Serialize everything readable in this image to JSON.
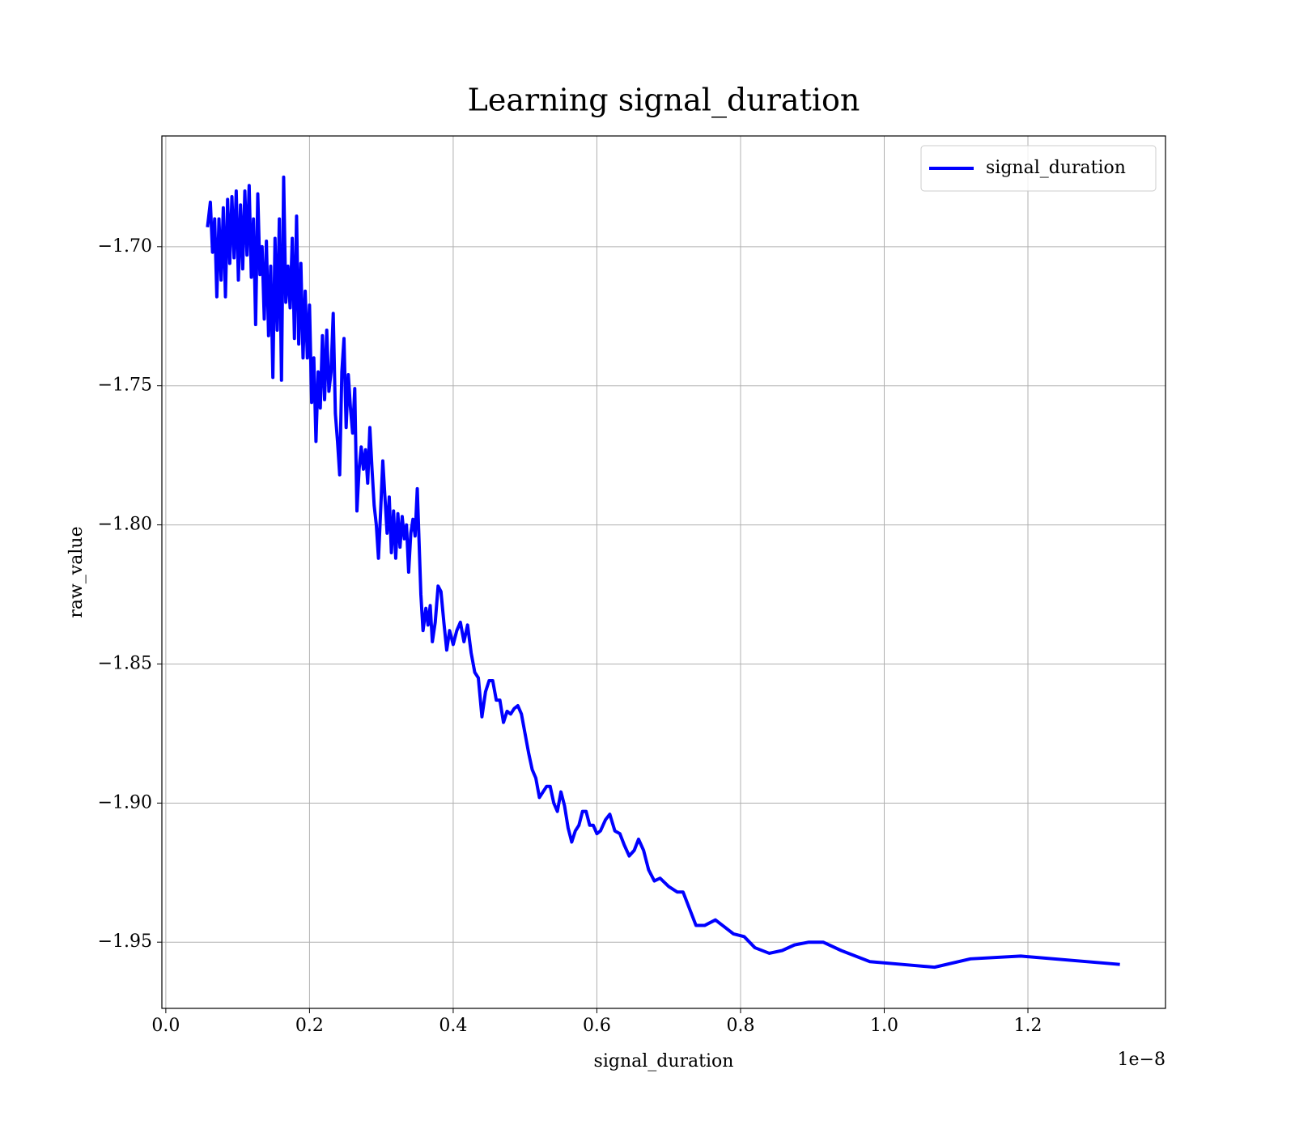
{
  "chart_data": {
    "type": "line",
    "title": "Learning signal_duration",
    "x_label": "signal_duration",
    "y_label": "raw_value",
    "x_offset_label": "1e−8",
    "x": [
      0.058,
      0.062,
      0.065,
      0.068,
      0.071,
      0.074,
      0.077,
      0.08,
      0.083,
      0.086,
      0.089,
      0.092,
      0.095,
      0.098,
      0.101,
      0.104,
      0.107,
      0.11,
      0.113,
      0.116,
      0.119,
      0.122,
      0.125,
      0.128,
      0.131,
      0.134,
      0.137,
      0.14,
      0.143,
      0.146,
      0.149,
      0.152,
      0.155,
      0.158,
      0.161,
      0.164,
      0.167,
      0.17,
      0.173,
      0.176,
      0.179,
      0.182,
      0.185,
      0.188,
      0.191,
      0.194,
      0.197,
      0.2,
      0.203,
      0.206,
      0.209,
      0.212,
      0.215,
      0.218,
      0.221,
      0.224,
      0.227,
      0.23,
      0.233,
      0.236,
      0.239,
      0.242,
      0.245,
      0.248,
      0.251,
      0.254,
      0.257,
      0.26,
      0.263,
      0.266,
      0.269,
      0.272,
      0.275,
      0.278,
      0.281,
      0.284,
      0.287,
      0.29,
      0.293,
      0.296,
      0.299,
      0.302,
      0.305,
      0.308,
      0.311,
      0.314,
      0.317,
      0.32,
      0.323,
      0.326,
      0.329,
      0.332,
      0.335,
      0.338,
      0.341,
      0.344,
      0.347,
      0.35,
      0.355,
      0.358,
      0.362,
      0.365,
      0.368,
      0.371,
      0.375,
      0.379,
      0.383,
      0.387,
      0.391,
      0.395,
      0.4,
      0.405,
      0.41,
      0.415,
      0.42,
      0.425,
      0.43,
      0.435,
      0.44,
      0.445,
      0.45,
      0.455,
      0.46,
      0.465,
      0.47,
      0.475,
      0.48,
      0.485,
      0.49,
      0.495,
      0.5,
      0.505,
      0.51,
      0.515,
      0.52,
      0.525,
      0.53,
      0.535,
      0.54,
      0.545,
      0.55,
      0.555,
      0.56,
      0.565,
      0.57,
      0.575,
      0.58,
      0.585,
      0.59,
      0.595,
      0.6,
      0.605,
      0.612,
      0.618,
      0.625,
      0.632,
      0.638,
      0.645,
      0.652,
      0.658,
      0.665,
      0.672,
      0.68,
      0.688,
      0.7,
      0.712,
      0.72,
      0.738,
      0.75,
      0.765,
      0.79,
      0.805,
      0.82,
      0.84,
      0.858,
      0.875,
      0.895,
      0.915,
      0.94,
      0.98,
      1.025,
      1.07,
      1.12,
      1.19,
      1.328
    ],
    "series": [
      {
        "name": "signal_duration",
        "color": "#0000ff",
        "values": [
          -1.693,
          -1.684,
          -1.702,
          -1.69,
          -1.718,
          -1.69,
          -1.712,
          -1.686,
          -1.718,
          -1.683,
          -1.706,
          -1.682,
          -1.704,
          -1.68,
          -1.712,
          -1.685,
          -1.708,
          -1.68,
          -1.703,
          -1.678,
          -1.711,
          -1.69,
          -1.728,
          -1.681,
          -1.71,
          -1.7,
          -1.726,
          -1.698,
          -1.732,
          -1.707,
          -1.747,
          -1.697,
          -1.73,
          -1.69,
          -1.748,
          -1.675,
          -1.72,
          -1.707,
          -1.722,
          -1.697,
          -1.733,
          -1.689,
          -1.735,
          -1.706,
          -1.74,
          -1.716,
          -1.74,
          -1.721,
          -1.756,
          -1.74,
          -1.77,
          -1.745,
          -1.758,
          -1.732,
          -1.755,
          -1.73,
          -1.752,
          -1.745,
          -1.724,
          -1.76,
          -1.77,
          -1.782,
          -1.745,
          -1.733,
          -1.765,
          -1.746,
          -1.758,
          -1.767,
          -1.751,
          -1.795,
          -1.78,
          -1.772,
          -1.78,
          -1.773,
          -1.785,
          -1.765,
          -1.78,
          -1.793,
          -1.8,
          -1.812,
          -1.795,
          -1.777,
          -1.79,
          -1.803,
          -1.79,
          -1.81,
          -1.795,
          -1.812,
          -1.796,
          -1.808,
          -1.797,
          -1.805,
          -1.8,
          -1.817,
          -1.803,
          -1.798,
          -1.804,
          -1.787,
          -1.825,
          -1.838,
          -1.83,
          -1.836,
          -1.829,
          -1.842,
          -1.835,
          -1.822,
          -1.824,
          -1.835,
          -1.845,
          -1.838,
          -1.843,
          -1.838,
          -1.835,
          -1.842,
          -1.836,
          -1.846,
          -1.853,
          -1.855,
          -1.869,
          -1.86,
          -1.856,
          -1.856,
          -1.863,
          -1.863,
          -1.871,
          -1.867,
          -1.868,
          -1.866,
          -1.865,
          -1.868,
          -1.875,
          -1.882,
          -1.888,
          -1.891,
          -1.898,
          -1.896,
          -1.894,
          -1.894,
          -1.9,
          -1.903,
          -1.896,
          -1.901,
          -1.909,
          -1.914,
          -1.91,
          -1.908,
          -1.903,
          -1.903,
          -1.908,
          -1.908,
          -1.911,
          -1.91,
          -1.906,
          -1.904,
          -1.91,
          -1.911,
          -1.915,
          -1.919,
          -1.917,
          -1.913,
          -1.917,
          -1.924,
          -1.928,
          -1.927,
          -1.93,
          -1.932,
          -1.932,
          -1.944,
          -1.944,
          -1.942,
          -1.947,
          -1.948,
          -1.952,
          -1.954,
          -1.953,
          -1.951,
          -1.95,
          -1.95,
          -1.953,
          -1.957,
          -1.958,
          -1.959,
          -1.956,
          -1.955,
          -1.958
        ]
      }
    ],
    "xlim": [
      -0.0055,
      1.3915
    ],
    "ylim": [
      -1.9738,
      -1.6602
    ],
    "xticks": [
      {
        "value": 0,
        "label": "0.0"
      },
      {
        "value": 0.2,
        "label": "0.2"
      },
      {
        "value": 0.4,
        "label": "0.4"
      },
      {
        "value": 0.6,
        "label": "0.6"
      },
      {
        "value": 0.8,
        "label": "0.8"
      },
      {
        "value": 1.0,
        "label": "1.0"
      },
      {
        "value": 1.2,
        "label": "1.2"
      }
    ],
    "yticks": [
      {
        "value": -1.95,
        "label": "−1.95"
      },
      {
        "value": -1.9,
        "label": "−1.90"
      },
      {
        "value": -1.85,
        "label": "−1.85"
      },
      {
        "value": -1.8,
        "label": "−1.80"
      },
      {
        "value": -1.75,
        "label": "−1.75"
      },
      {
        "value": -1.7,
        "label": "−1.70"
      }
    ],
    "grid": true,
    "legend": "upper right"
  }
}
